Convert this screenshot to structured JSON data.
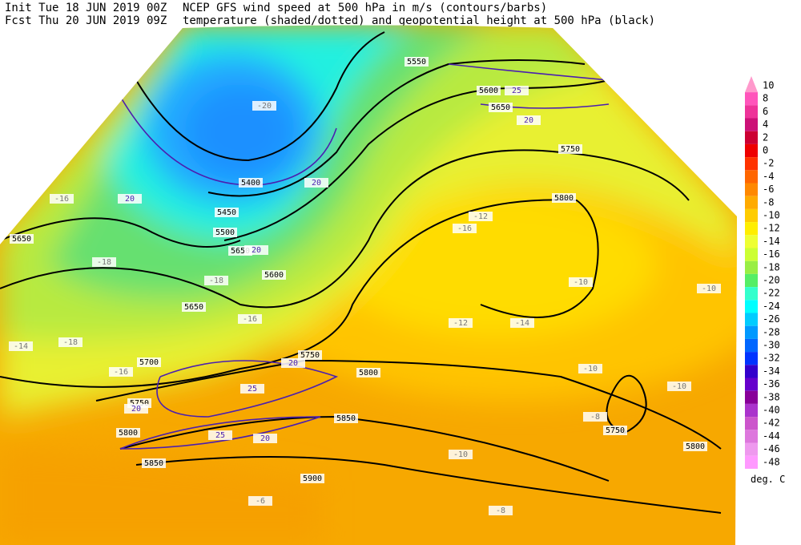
{
  "header": {
    "init": "Init  Tue 18 JUN 2019 00Z",
    "title": "NCEP GFS wind speed at 500 hPa in m/s (contours/barbs)",
    "forecast": "Fcst Thu 20 JUN 2019 09Z",
    "subtitle": "temperature (shaded/dotted) and geopotential height at 500 hPa (black)"
  },
  "map": {
    "height_labels": [
      5650,
      5650,
      5500,
      5450,
      5400,
      5650,
      5600,
      5700,
      5750,
      5800,
      5750,
      5850,
      5800,
      5850,
      5900,
      5750,
      5800,
      5800,
      5750,
      5650,
      5600,
      5550
    ],
    "temperature_labels": [
      -16,
      -18,
      -18,
      -16,
      -16,
      -18,
      -14,
      -20,
      -16,
      -12,
      -10,
      -12,
      -14,
      -10,
      -10,
      -10,
      -8,
      -10,
      -8,
      -6
    ],
    "wind_labels": [
      20,
      20,
      20,
      25,
      20,
      25,
      20,
      25,
      20,
      20
    ]
  },
  "colorbar": {
    "levels": [
      10,
      8,
      6,
      4,
      2,
      0,
      -2,
      -4,
      -6,
      -8,
      -10,
      -12,
      -14,
      -16,
      -18,
      -20,
      -22,
      -24,
      -26,
      -28,
      -30,
      -32,
      -34,
      -36,
      -38,
      -40,
      -42,
      -44,
      -46,
      -48
    ],
    "colors": [
      "#ff99cc",
      "#ff55bb",
      "#ee3399",
      "#cc1177",
      "#cc0033",
      "#ee0000",
      "#ff3300",
      "#ff6600",
      "#ff8800",
      "#ffaa00",
      "#ffcc00",
      "#ffee00",
      "#eeff33",
      "#ccff33",
      "#99ee44",
      "#55ee66",
      "#33ffcc",
      "#00ffff",
      "#00ccff",
      "#0099ff",
      "#0066ff",
      "#0033ff",
      "#3300cc",
      "#6600cc",
      "#880099",
      "#aa33cc",
      "#cc55cc",
      "#dd77dd",
      "#ee99ee",
      "#ff99ff"
    ],
    "unit": "deg. C"
  }
}
